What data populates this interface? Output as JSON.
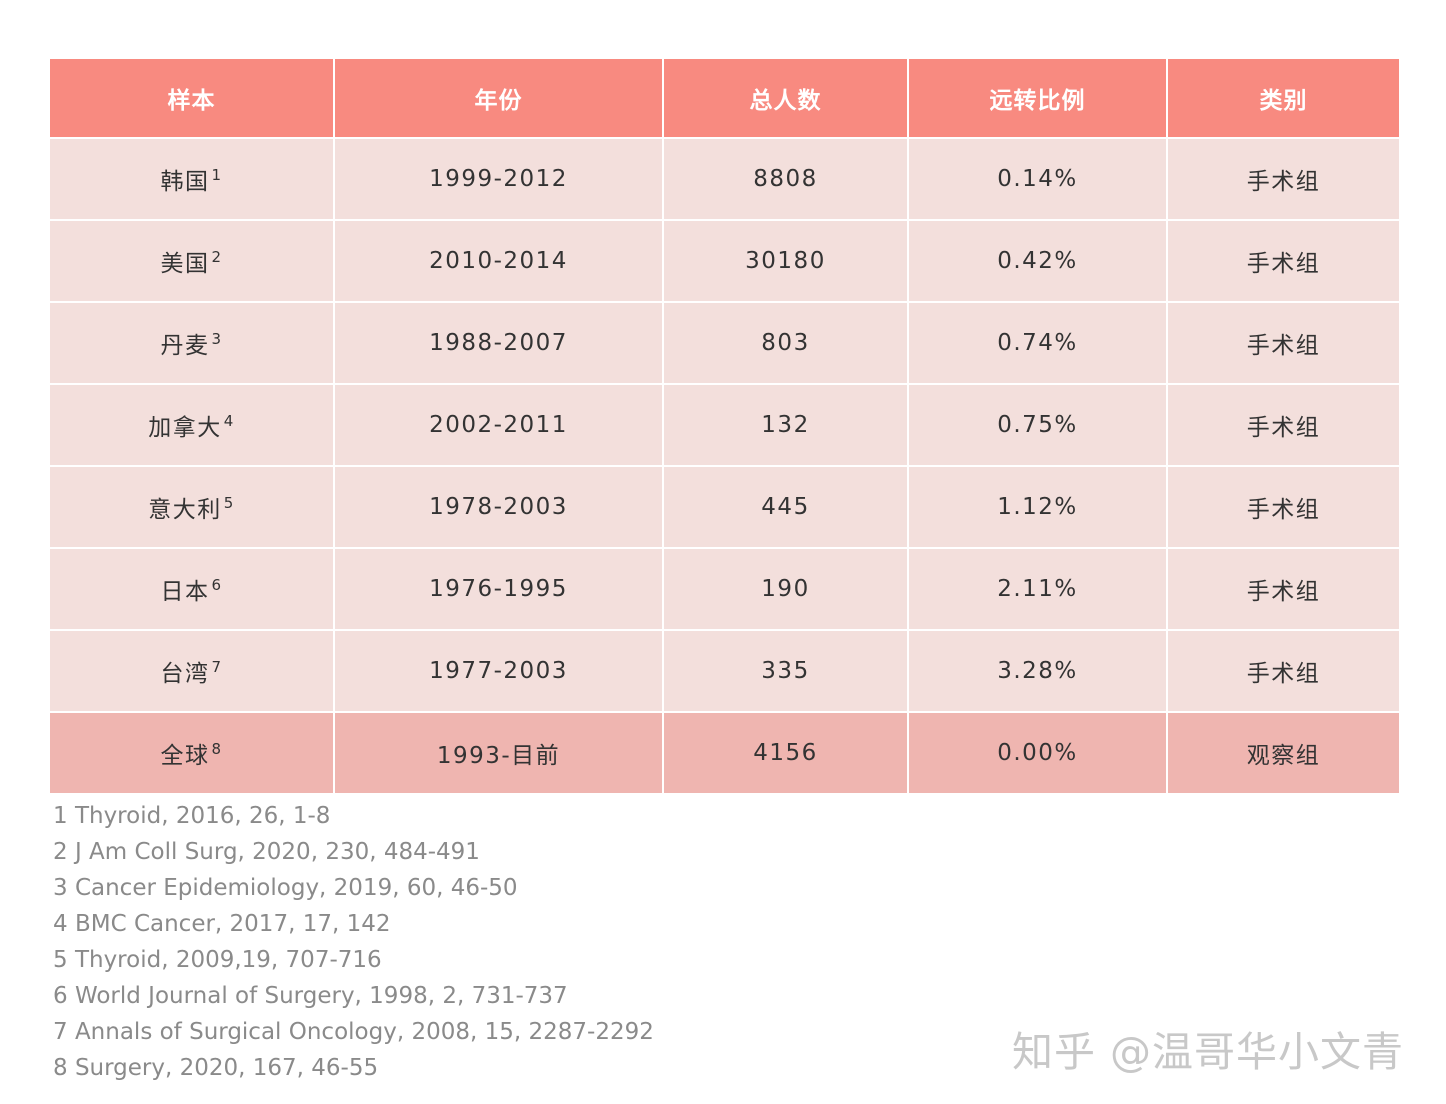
{
  "table": {
    "headers": [
      "样本",
      "年份",
      "总人数",
      "远转比例",
      "类别"
    ],
    "rows": [
      {
        "sample": "韩国",
        "ref": "1",
        "years": "1999-2012",
        "total": "8808",
        "ratio": "0.14%",
        "category": "手术组"
      },
      {
        "sample": "美国",
        "ref": "2",
        "years": "2010-2014",
        "total": "30180",
        "ratio": "0.42%",
        "category": "手术组"
      },
      {
        "sample": "丹麦",
        "ref": "3",
        "years": "1988-2007",
        "total": "803",
        "ratio": "0.74%",
        "category": "手术组"
      },
      {
        "sample": "加拿大",
        "ref": "4",
        "years": "2002-2011",
        "total": "132",
        "ratio": "0.75%",
        "category": "手术组"
      },
      {
        "sample": "意大利",
        "ref": "5",
        "years": "1978-2003",
        "total": "445",
        "ratio": "1.12%",
        "category": "手术组"
      },
      {
        "sample": "日本",
        "ref": "6",
        "years": "1976-1995",
        "total": "190",
        "ratio": "2.11%",
        "category": "手术组"
      },
      {
        "sample": "台湾",
        "ref": "7",
        "years": "1977-2003",
        "total": "335",
        "ratio": "3.28%",
        "category": "手术组"
      },
      {
        "sample": "全球",
        "ref": "8",
        "years": "1993-目前",
        "total": "4156",
        "ratio": "0.00%",
        "category": "观察组"
      }
    ]
  },
  "references": [
    "1 Thyroid, 2016, 26, 1-8",
    "2 J Am Coll Surg, 2020, 230, 484-491",
    "3 Cancer Epidemiology, 2019, 60, 46-50",
    "4 BMC Cancer, 2017, 17, 142",
    "5 Thyroid, 2009,19, 707-716",
    "6 World Journal of Surgery, 1998, 2, 731-737",
    "7 Annals of Surgical Oncology, 2008, 15, 2287-2292",
    "8 Surgery, 2020, 167, 46-55"
  ],
  "watermark": "知乎 @温哥华小文青",
  "colors": {
    "header_bg": "#f88a80",
    "row_bg": "#f3dfdc",
    "total_row_bg": "#efb5b0"
  }
}
